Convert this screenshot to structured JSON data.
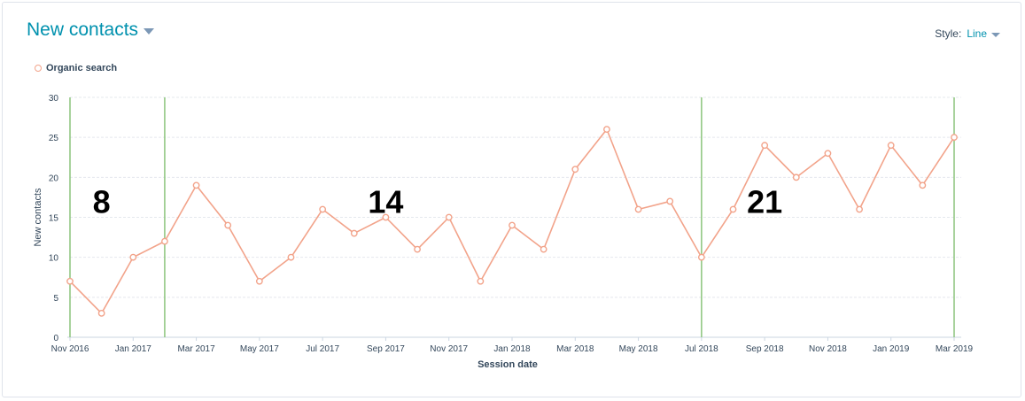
{
  "header": {
    "title": "New contacts",
    "style_label": "Style:",
    "style_value": "Line"
  },
  "legend": {
    "series_name": "Organic search"
  },
  "annotations": [
    "8",
    "14",
    "21"
  ],
  "colors": {
    "series": "#f2a38a",
    "marker_line": "#8bc47b",
    "title": "#0091ae",
    "grid": "#e5e8ee"
  },
  "chart_data": {
    "type": "line",
    "xlabel": "Session date",
    "ylabel": "New contacts",
    "ylim": [
      0,
      30
    ],
    "yticks": [
      0,
      5,
      10,
      15,
      20,
      25,
      30
    ],
    "grid": true,
    "legend_position": "top-left",
    "x": [
      "Nov 2016",
      "Dec 2016",
      "Jan 2017",
      "Feb 2017",
      "Mar 2017",
      "Apr 2017",
      "May 2017",
      "Jun 2017",
      "Jul 2017",
      "Aug 2017",
      "Sep 2017",
      "Oct 2017",
      "Nov 2017",
      "Dec 2017",
      "Jan 2018",
      "Feb 2018",
      "Mar 2018",
      "Apr 2018",
      "May 2018",
      "Jun 2018",
      "Jul 2018",
      "Aug 2018",
      "Sep 2018",
      "Oct 2018",
      "Nov 2018",
      "Dec 2018",
      "Jan 2019",
      "Feb 2019",
      "Mar 2019"
    ],
    "xtick_labels": [
      "Nov 2016",
      "Jan 2017",
      "Mar 2017",
      "May 2017",
      "Jul 2017",
      "Sep 2017",
      "Nov 2017",
      "Jan 2018",
      "Mar 2018",
      "May 2018",
      "Jul 2018",
      "Sep 2018",
      "Nov 2018",
      "Jan 2019",
      "Mar 2019"
    ],
    "series": [
      {
        "name": "Organic search",
        "values": [
          7,
          3,
          10,
          12,
          19,
          14,
          7,
          10,
          16,
          13,
          15,
          11,
          15,
          7,
          14,
          11,
          21,
          26,
          16,
          17,
          10,
          16,
          24,
          20,
          23,
          16,
          24,
          19,
          25
        ]
      }
    ],
    "vertical_markers": [
      "Nov 2016",
      "Feb 2017",
      "Jul 2018",
      "Mar 2019"
    ],
    "annotation_positions": [
      {
        "text": "8",
        "x": "Dec 2016",
        "y": 17
      },
      {
        "text": "14",
        "x": "Sep 2017",
        "y": 17
      },
      {
        "text": "21",
        "x": "Sep 2018",
        "y": 17
      }
    ]
  }
}
